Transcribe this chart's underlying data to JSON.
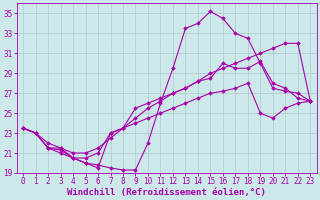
{
  "xlabel": "Windchill (Refroidissement éolien,°C)",
  "bg_color": "#cce8e8",
  "line_color": "#aa00aa",
  "xlim": [
    -0.5,
    23.5
  ],
  "ylim": [
    19,
    36
  ],
  "xticks": [
    0,
    1,
    2,
    3,
    4,
    5,
    6,
    7,
    8,
    9,
    10,
    11,
    12,
    13,
    14,
    15,
    16,
    17,
    18,
    19,
    20,
    21,
    22,
    23
  ],
  "yticks": [
    19,
    21,
    23,
    25,
    27,
    29,
    31,
    33,
    35
  ],
  "curves": [
    {
      "x": [
        0,
        1,
        2,
        3,
        4,
        5,
        6,
        7,
        8,
        9,
        10,
        11,
        12,
        13,
        14,
        15,
        16,
        17,
        18,
        19,
        20,
        21,
        22,
        23
      ],
      "y": [
        23.5,
        23.0,
        21.5,
        21.5,
        20.5,
        20.0,
        19.8,
        19.5,
        19.3,
        19.3,
        22.0,
        26.0,
        29.5,
        33.5,
        34.0,
        35.2,
        34.5,
        33.0,
        32.5,
        30.0,
        27.5,
        27.2,
        27.0,
        26.2
      ]
    },
    {
      "x": [
        0,
        1,
        2,
        3,
        4,
        5,
        6,
        7,
        8,
        9,
        10,
        11,
        12,
        13,
        14,
        15,
        16,
        17,
        18,
        19,
        20,
        21,
        22,
        23
      ],
      "y": [
        23.5,
        23.0,
        21.5,
        21.0,
        20.5,
        20.5,
        21.0,
        23.0,
        23.5,
        25.5,
        26.0,
        26.5,
        27.0,
        27.5,
        28.2,
        28.5,
        30.0,
        29.5,
        29.5,
        30.2,
        28.0,
        27.5,
        26.5,
        26.2
      ]
    },
    {
      "x": [
        0,
        1,
        2,
        3,
        4,
        5,
        6,
        7,
        8,
        9,
        10,
        11,
        12,
        13,
        14,
        15,
        16,
        17,
        18,
        19,
        20,
        21,
        22,
        23
      ],
      "y": [
        23.5,
        23.0,
        22.0,
        21.5,
        21.0,
        21.0,
        21.5,
        22.5,
        23.5,
        24.5,
        25.5,
        26.2,
        27.0,
        27.5,
        28.2,
        29.0,
        29.5,
        30.0,
        30.5,
        31.0,
        31.5,
        32.0,
        32.0,
        26.2
      ]
    },
    {
      "x": [
        0,
        1,
        2,
        3,
        4,
        5,
        6,
        7,
        8,
        9,
        10,
        11,
        12,
        13,
        14,
        15,
        16,
        17,
        18,
        19,
        20,
        21,
        22,
        23
      ],
      "y": [
        23.5,
        23.0,
        21.5,
        21.3,
        20.5,
        20.0,
        19.5,
        23.0,
        23.5,
        24.0,
        24.5,
        25.0,
        25.5,
        26.0,
        26.5,
        27.0,
        27.2,
        27.5,
        28.0,
        25.0,
        24.5,
        25.5,
        26.0,
        26.2
      ]
    }
  ],
  "grid_color": "#aacccc",
  "marker": "D",
  "marker_size": 1.8,
  "line_width": 0.8,
  "xlabel_fontsize": 6.5,
  "tick_fontsize": 5.5
}
